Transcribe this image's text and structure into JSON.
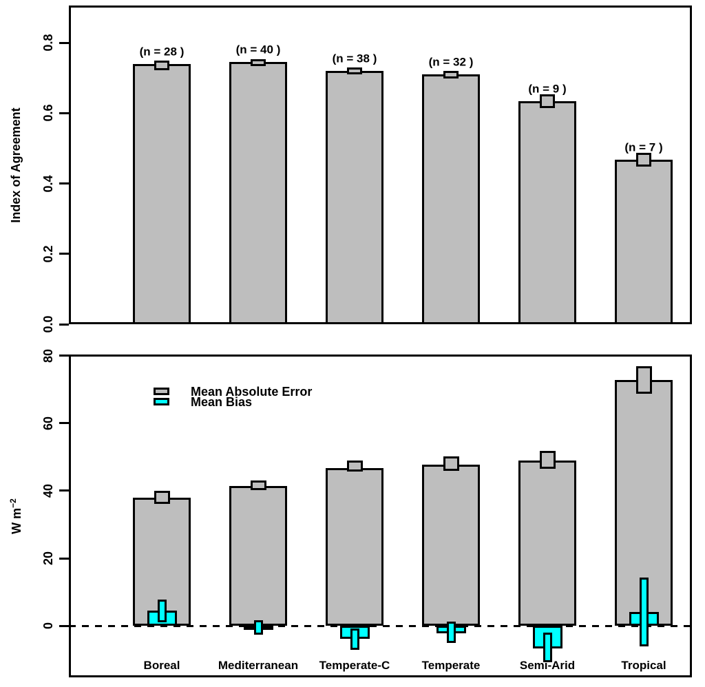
{
  "figure": {
    "background": "#ffffff",
    "colors": {
      "bar_gray": "#bebebe",
      "bias_cyan": "#00ffff",
      "line_black": "#000000"
    }
  },
  "legend": {
    "items": [
      {
        "label": "Mean Absolute Error",
        "color": "#bebebe"
      },
      {
        "label": "Mean Bias",
        "color": "#00ffff"
      }
    ]
  },
  "chart_data": [
    {
      "type": "bar",
      "panel": "top",
      "title": "",
      "xlabel": "",
      "ylabel": "Index of Agreement",
      "ylabel_sup": "",
      "ylim": [
        0,
        0.906
      ],
      "ytick_labels": [
        "0.0",
        "0.2",
        "0.4",
        "0.6",
        "0.8"
      ],
      "ytick_values": [
        0.0,
        0.2,
        0.4,
        0.6,
        0.8
      ],
      "grid": false,
      "categories": [
        "Boreal",
        "Mediterranean",
        "Temperate-C",
        "Temperate",
        "Semi-Arid",
        "Tropical"
      ],
      "show_category_labels": false,
      "bar_annotations": [
        "(n = 28 )",
        "(n = 40 )",
        "(n = 38 )",
        "(n = 32 )",
        "(n = 9 )",
        "(n = 7 )"
      ],
      "series": [
        {
          "name": "Index of Agreement",
          "role": "main",
          "color": "#bebebe",
          "values": [
            0.74,
            0.746,
            0.72,
            0.71,
            0.634,
            0.468
          ],
          "error_boxes": [
            [
              0.722,
              0.75
            ],
            [
              0.734,
              0.753
            ],
            [
              0.71,
              0.73
            ],
            [
              0.699,
              0.72
            ],
            [
              0.614,
              0.654
            ],
            [
              0.448,
              0.487
            ]
          ]
        }
      ]
    },
    {
      "type": "bar",
      "panel": "bottom",
      "title": "",
      "xlabel": "",
      "ylabel": "W m",
      "ylabel_sup": "−2",
      "ylim": [
        -15.3,
        80.4
      ],
      "ytick_labels": [
        "0",
        "20",
        "40",
        "60",
        "80"
      ],
      "ytick_values": [
        0,
        20,
        40,
        60,
        80
      ],
      "grid": false,
      "zero_line": "dashed",
      "categories": [
        "Boreal",
        "Mediterranean",
        "Temperate-C",
        "Temperate",
        "Semi-Arid",
        "Tropical"
      ],
      "show_category_labels": true,
      "legend_position": "upper-left-inside",
      "series": [
        {
          "name": "Mean Absolute Error",
          "role": "main",
          "color": "#bebebe",
          "values": [
            38.0,
            41.4,
            46.7,
            47.8,
            49.0,
            72.9
          ],
          "error_boxes": [
            [
              36.1,
              40.0
            ],
            [
              40.2,
              43.1
            ],
            [
              45.7,
              49.0
            ],
            [
              45.9,
              50.2
            ],
            [
              46.5,
              51.8
            ],
            [
              68.8,
              76.9
            ]
          ]
        },
        {
          "name": "Mean Bias",
          "role": "bias",
          "color": "#00ffff",
          "values": [
            4.4,
            -0.5,
            -3.9,
            -2.2,
            -6.7,
            4.1
          ],
          "error_boxes": [
            [
              1.1,
              7.7
            ],
            [
              -2.7,
              1.6
            ],
            [
              -7.1,
              -0.8
            ],
            [
              -5.1,
              1.2
            ],
            [
              -10.8,
              -2.0
            ],
            [
              -6.1,
              14.3
            ]
          ]
        }
      ]
    }
  ]
}
